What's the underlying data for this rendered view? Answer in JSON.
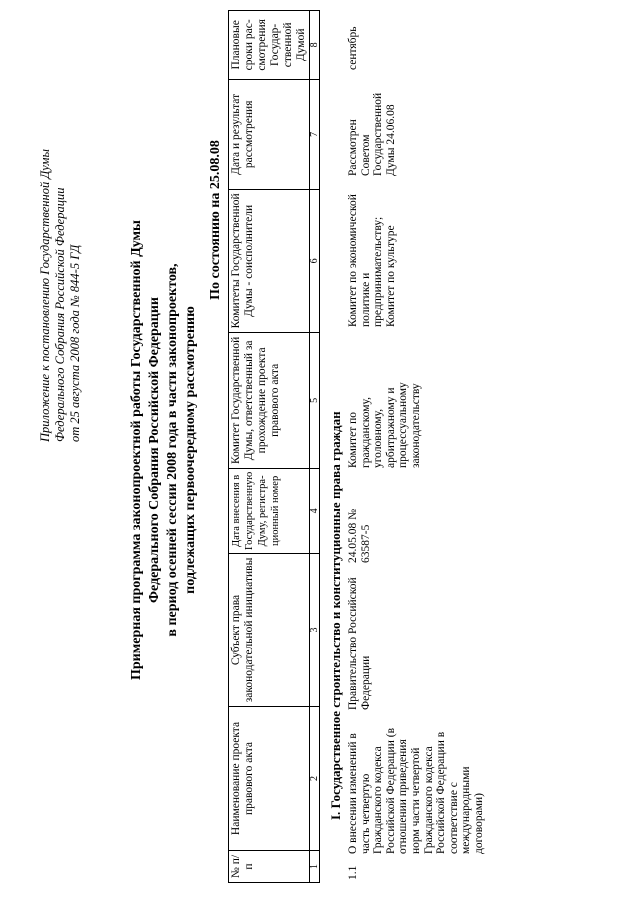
{
  "appendix": [
    "Приложение к постановлению Государственной Думы",
    "Федерального Собрания Российской Федерации",
    "от 25 августа 2008 года № 844-5 ГД"
  ],
  "title": [
    "Примерная программа законопроектной работы Государственной Думы",
    "Федерального Собрания Российской Федерации",
    "в период осенней сессии 2008 года в части законопроектов,",
    "подлежащих первоочередному рассмотрению"
  ],
  "as_of": "По состоянию на 25.08.08",
  "table": {
    "headers": [
      "№ п/п",
      "Наименование проекта правового акта",
      "Субъект права законодательной инициативы",
      "Дата внесения в Государственную Думу, регистра-ционный номер",
      "Комитет Государственной Думы, ответственный за прохождение проекта правового акта",
      "Комитеты Государственной Думы - соисполнители",
      "Дата и результат рассмотрения",
      "Плановые сроки рас-смотрения Государ-ственной Думой"
    ],
    "numbers": [
      "1",
      "2",
      "3",
      "4",
      "5",
      "6",
      "7",
      "8"
    ],
    "section": "I. Государственное строительство и конституционные права граждан",
    "rows": [
      {
        "num": "1.1",
        "name": "О внесении изменений в часть четвертую Гражданского кодекса Российской Федерации (в отношении приведения норм части четвертой Гражданского кодекса Российской Федерации в соответствие с международными договорами)",
        "subject": "Правительство Российской Федерации",
        "date_reg": "24.05.08 № 63587-5",
        "committee": "Комитет по гражданскому, уголовному, арбитражному и процессуальному законодательству",
        "co_committees": "Комитет по экономической политике и предпринимательству; Комитет по культуре",
        "result": "Рассмотрен Советом Государственной Думы 24.06.08",
        "planned": "сентябрь"
      }
    ]
  }
}
